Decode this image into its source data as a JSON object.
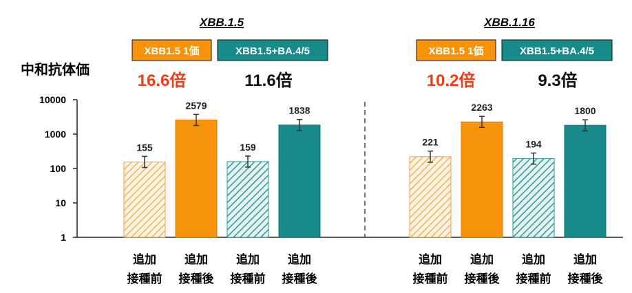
{
  "chart_data": {
    "type": "bar",
    "ylabel": "中和抗体価",
    "yscale": "log",
    "ylim": [
      1,
      10000
    ],
    "yticks": [
      "1",
      "10",
      "100",
      "1000",
      "10000"
    ],
    "categories": [
      [
        "追加",
        "接種前"
      ],
      [
        "追加",
        "接種後"
      ],
      [
        "追加",
        "接種前"
      ],
      [
        "追加",
        "接種後"
      ]
    ],
    "legend": [
      {
        "label": "XBB1.5 1価",
        "color": "#f7930a"
      },
      {
        "label": "XBB1.5+BA.4/5",
        "color": "#178a8a"
      }
    ],
    "panels": [
      {
        "title": "XBB.1.5",
        "ratios": [
          {
            "text": "16.6倍",
            "color": "#e8401c"
          },
          {
            "text": "11.6倍",
            "color": "#111111"
          }
        ],
        "values": [
          155,
          2579,
          159,
          1838
        ],
        "labels": [
          "155",
          "2579",
          "159",
          "1838"
        ]
      },
      {
        "title": "XBB.1.16",
        "ratios": [
          {
            "text": "10.2倍",
            "color": "#e8401c"
          },
          {
            "text": "9.3倍",
            "color": "#111111"
          }
        ],
        "values": [
          221,
          2263,
          194,
          1800
        ],
        "labels": [
          "221",
          "2263",
          "194",
          "1800"
        ]
      }
    ]
  }
}
